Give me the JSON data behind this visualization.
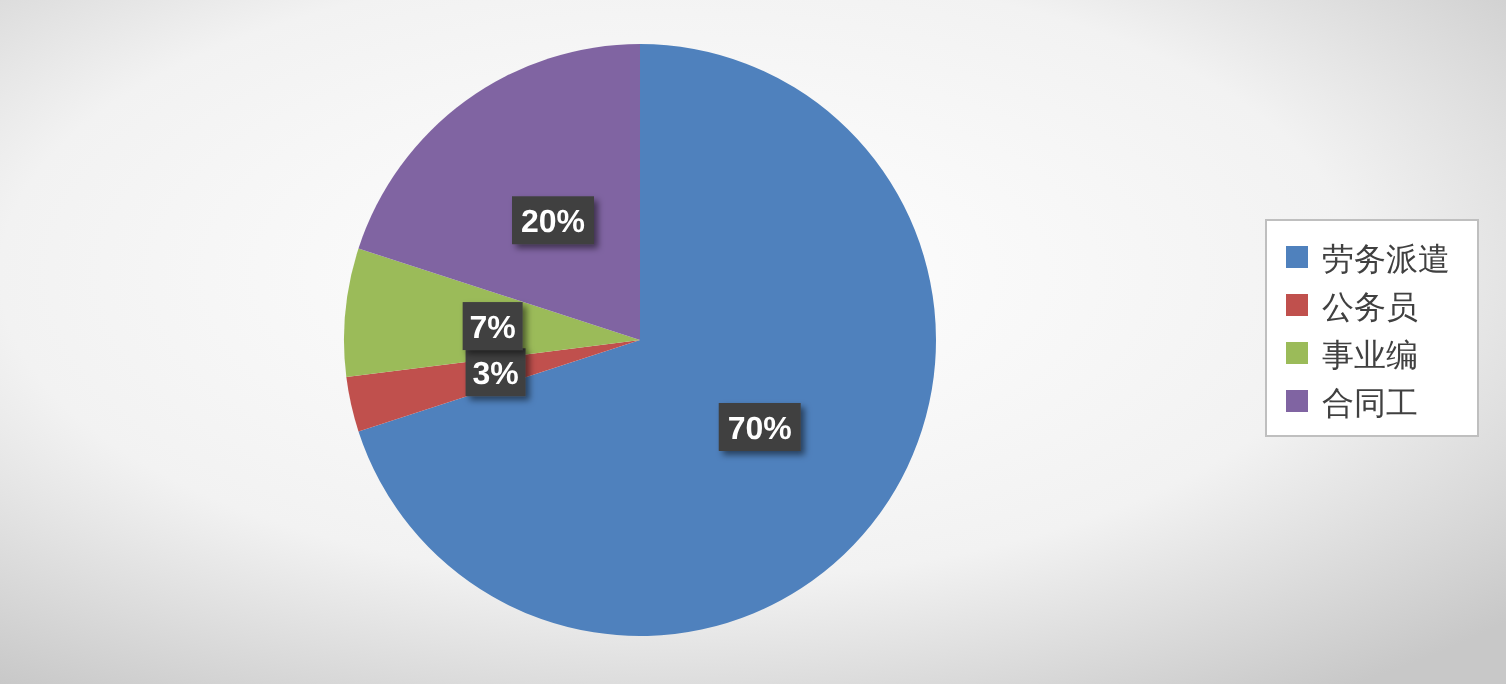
{
  "chart_data": {
    "type": "pie",
    "categories": [
      "劳务派遣",
      "公务员",
      "事业编",
      "合同工"
    ],
    "values": [
      70,
      3,
      7,
      20
    ],
    "colors": [
      "#4f81bd",
      "#c0504d",
      "#9bbb59",
      "#8064a2"
    ],
    "value_labels": [
      "70%",
      "3%",
      "7%",
      "20%"
    ],
    "legend": "right"
  }
}
